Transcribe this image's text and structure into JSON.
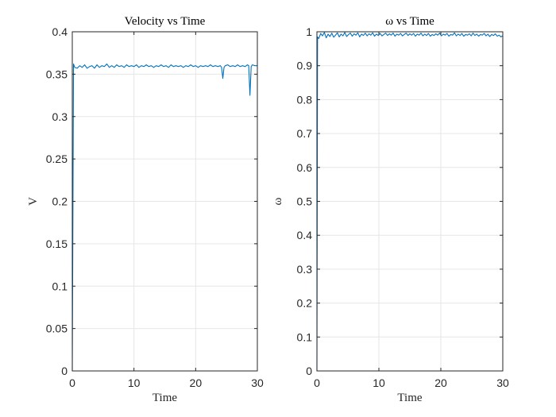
{
  "chart_data": [
    {
      "type": "line",
      "title": "Velocity vs Time",
      "xlabel": "Time",
      "ylabel": "V",
      "xlim": [
        0,
        30
      ],
      "ylim": [
        0,
        0.4
      ],
      "xticks": [
        0,
        10,
        20,
        30
      ],
      "xtick_labels": [
        "0",
        "10",
        "20",
        "30"
      ],
      "yticks": [
        0,
        0.05,
        0.1,
        0.15,
        0.2,
        0.25,
        0.3,
        0.35,
        0.4
      ],
      "ytick_labels": [
        "0",
        "0.05",
        "0.1",
        "0.15",
        "0.2",
        "0.25",
        "0.3",
        "0.35",
        "0.4"
      ],
      "grid": true,
      "series": [
        {
          "color": "#0072BD",
          "x": [
            0,
            0.2,
            0.4,
            0.8,
            1.2,
            1.6,
            2.0,
            2.4,
            2.8,
            3.2,
            3.6,
            4.0,
            4.4,
            4.8,
            5.2,
            5.6,
            6.0,
            6.4,
            6.8,
            7.2,
            7.6,
            8.0,
            8.4,
            8.8,
            9.2,
            9.6,
            10.0,
            10.4,
            10.8,
            11.2,
            11.6,
            12.0,
            12.4,
            12.8,
            13.2,
            13.6,
            14.0,
            14.4,
            14.8,
            15.2,
            15.6,
            16.0,
            16.4,
            16.8,
            17.2,
            17.6,
            18.0,
            18.4,
            18.8,
            19.2,
            19.6,
            20.0,
            20.4,
            20.8,
            21.2,
            21.6,
            22.0,
            22.4,
            22.8,
            23.2,
            23.6,
            24.0,
            24.2,
            24.4,
            24.6,
            24.8,
            25.2,
            25.6,
            26.0,
            26.4,
            26.8,
            27.2,
            27.6,
            28.0,
            28.4,
            28.6,
            28.8,
            29.0,
            29.2,
            29.6,
            30.0
          ],
          "y": [
            0,
            0.362,
            0.358,
            0.357,
            0.36,
            0.358,
            0.361,
            0.357,
            0.359,
            0.36,
            0.357,
            0.361,
            0.358,
            0.36,
            0.359,
            0.362,
            0.358,
            0.36,
            0.358,
            0.361,
            0.359,
            0.36,
            0.358,
            0.361,
            0.359,
            0.36,
            0.359,
            0.361,
            0.358,
            0.36,
            0.359,
            0.361,
            0.359,
            0.36,
            0.358,
            0.36,
            0.359,
            0.361,
            0.359,
            0.36,
            0.358,
            0.361,
            0.359,
            0.36,
            0.359,
            0.36,
            0.358,
            0.36,
            0.359,
            0.361,
            0.359,
            0.36,
            0.358,
            0.36,
            0.359,
            0.36,
            0.359,
            0.361,
            0.359,
            0.36,
            0.359,
            0.36,
            0.358,
            0.345,
            0.358,
            0.36,
            0.361,
            0.359,
            0.36,
            0.359,
            0.361,
            0.359,
            0.36,
            0.359,
            0.361,
            0.36,
            0.325,
            0.359,
            0.361,
            0.36,
            0.36
          ]
        }
      ]
    },
    {
      "type": "line",
      "title": "ω vs Time",
      "xlabel": "Time",
      "ylabel": "ω",
      "xlim": [
        0,
        30
      ],
      "ylim": [
        0,
        1
      ],
      "xticks": [
        0,
        10,
        20,
        30
      ],
      "xtick_labels": [
        "0",
        "10",
        "20",
        "30"
      ],
      "yticks": [
        0,
        0.1,
        0.2,
        0.3,
        0.4,
        0.5,
        0.6,
        0.7,
        0.8,
        0.9,
        1
      ],
      "ytick_labels": [
        "0",
        "0.1",
        "0.2",
        "0.3",
        "0.4",
        "0.5",
        "0.6",
        "0.7",
        "0.8",
        "0.9",
        "1"
      ],
      "grid": true,
      "series": [
        {
          "color": "#0072BD",
          "x": [
            0,
            0.1,
            0.3,
            0.6,
            0.9,
            1.2,
            1.5,
            1.8,
            2.1,
            2.4,
            2.7,
            3.0,
            3.3,
            3.6,
            3.9,
            4.2,
            4.5,
            4.8,
            5.1,
            5.4,
            5.7,
            6.0,
            6.3,
            6.6,
            6.9,
            7.2,
            7.5,
            7.8,
            8.1,
            8.4,
            8.7,
            9.0,
            9.3,
            9.6,
            9.9,
            10.2,
            10.5,
            10.8,
            11.1,
            11.4,
            11.7,
            12.0,
            12.3,
            12.6,
            12.9,
            13.2,
            13.5,
            13.8,
            14.1,
            14.4,
            14.7,
            15.0,
            15.3,
            15.6,
            15.9,
            16.2,
            16.5,
            16.8,
            17.1,
            17.4,
            17.7,
            18.0,
            18.3,
            18.6,
            18.9,
            19.2,
            19.5,
            19.8,
            20.1,
            20.4,
            20.7,
            21.0,
            21.3,
            21.6,
            21.9,
            22.2,
            22.5,
            22.8,
            23.1,
            23.4,
            23.7,
            24.0,
            24.3,
            24.6,
            24.9,
            25.2,
            25.5,
            25.8,
            26.1,
            26.4,
            26.7,
            27.0,
            27.3,
            27.6,
            27.9,
            28.2,
            28.5,
            28.8,
            29.1,
            29.4,
            29.7,
            30.0
          ],
          "y": [
            0,
            0.985,
            0.98,
            0.995,
            0.988,
            0.998,
            0.982,
            0.993,
            0.986,
            0.996,
            0.984,
            0.99,
            0.997,
            0.985,
            0.993,
            0.988,
            0.998,
            0.986,
            0.992,
            0.996,
            0.987,
            0.994,
            0.99,
            0.997,
            0.985,
            0.993,
            0.989,
            0.996,
            0.988,
            0.994,
            0.99,
            0.997,
            0.987,
            0.993,
            0.989,
            0.995,
            0.988,
            0.992,
            0.996,
            0.989,
            0.994,
            0.99,
            0.996,
            0.987,
            0.993,
            0.99,
            0.995,
            0.988,
            0.992,
            0.996,
            0.989,
            0.994,
            0.99,
            0.995,
            0.987,
            0.993,
            0.99,
            0.996,
            0.988,
            0.993,
            0.989,
            0.995,
            0.987,
            0.992,
            0.989,
            0.994,
            0.99,
            0.996,
            0.988,
            0.993,
            0.99,
            0.995,
            0.987,
            0.992,
            0.99,
            0.997,
            0.988,
            0.993,
            0.989,
            0.995,
            0.987,
            0.992,
            0.99,
            0.994,
            0.988,
            0.996,
            0.989,
            0.993,
            0.987,
            0.992,
            0.99,
            0.995,
            0.988,
            0.993,
            0.986,
            0.992,
            0.989,
            0.994,
            0.987,
            0.99,
            0.985,
            0.988
          ]
        }
      ]
    }
  ]
}
